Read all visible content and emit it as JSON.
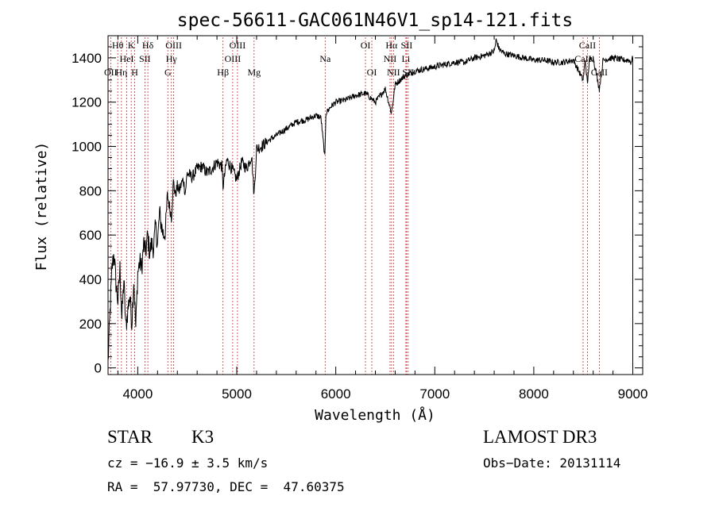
{
  "chart_data": {
    "type": "line",
    "title": "spec-56611-GAC061N46V1_sp14-121.fits",
    "xlabel": "Wavelength (Å)",
    "ylabel": "Flux (relative)",
    "xlim": [
      3700,
      9100
    ],
    "ylim": [
      -30,
      1500
    ],
    "x_ticks": [
      4000,
      5000,
      6000,
      7000,
      8000,
      9000
    ],
    "y_ticks": [
      0,
      200,
      400,
      600,
      800,
      1000,
      1200,
      1400
    ],
    "series": [
      {
        "name": "spectrum",
        "x": [
          3700,
          3720,
          3740,
          3760,
          3780,
          3800,
          3820,
          3840,
          3860,
          3880,
          3900,
          3920,
          3940,
          3960,
          3980,
          4000,
          4020,
          4040,
          4060,
          4080,
          4100,
          4120,
          4140,
          4160,
          4180,
          4200,
          4220,
          4240,
          4260,
          4280,
          4300,
          4320,
          4340,
          4360,
          4380,
          4400,
          4420,
          4440,
          4460,
          4480,
          4500,
          4550,
          4600,
          4650,
          4700,
          4750,
          4800,
          4850,
          4861,
          4900,
          4950,
          5000,
          5050,
          5100,
          5150,
          5175,
          5200,
          5250,
          5300,
          5400,
          5500,
          5600,
          5700,
          5800,
          5850,
          5890,
          5900,
          5950,
          6000,
          6100,
          6200,
          6300,
          6400,
          6500,
          6563,
          6600,
          6700,
          6800,
          6900,
          7000,
          7100,
          7200,
          7300,
          7400,
          7500,
          7600,
          7620,
          7650,
          7700,
          7800,
          7900,
          8000,
          8100,
          8200,
          8300,
          8400,
          8498,
          8520,
          8542,
          8560,
          8600,
          8662,
          8700,
          8800,
          8900,
          8960,
          8980,
          9000
        ],
        "y": [
          20,
          250,
          450,
          520,
          380,
          300,
          450,
          220,
          400,
          180,
          260,
          330,
          200,
          400,
          180,
          430,
          480,
          450,
          560,
          520,
          600,
          520,
          560,
          540,
          640,
          560,
          700,
          640,
          600,
          620,
          780,
          730,
          680,
          840,
          780,
          820,
          800,
          830,
          850,
          790,
          880,
          860,
          900,
          910,
          880,
          900,
          930,
          910,
          820,
          940,
          900,
          850,
          930,
          900,
          960,
          780,
          990,
          1000,
          1020,
          1050,
          1080,
          1110,
          1120,
          1140,
          1130,
          950,
          1150,
          1180,
          1200,
          1210,
          1230,
          1240,
          1200,
          1260,
          1150,
          1280,
          1320,
          1340,
          1350,
          1360,
          1370,
          1380,
          1380,
          1400,
          1410,
          1430,
          1480,
          1440,
          1420,
          1410,
          1400,
          1390,
          1390,
          1380,
          1380,
          1390,
          1300,
          1390,
          1280,
          1390,
          1400,
          1260,
          1390,
          1400,
          1390,
          1390,
          1380,
          1400
        ]
      }
    ],
    "line_markers": [
      {
        "label": "Hθ",
        "x": 3798,
        "row": 1
      },
      {
        "label": "OII",
        "x": 3727,
        "row": 3
      },
      {
        "label": "Hη",
        "x": 3835,
        "row": 3
      },
      {
        "label": "HeI",
        "x": 3889,
        "row": 2
      },
      {
        "label": "K",
        "x": 3934,
        "row": 1
      },
      {
        "label": "H",
        "x": 3969,
        "row": 3
      },
      {
        "label": "Hδ",
        "x": 4102,
        "row": 1
      },
      {
        "label": "SII",
        "x": 4072,
        "row": 2
      },
      {
        "label": "OIII",
        "x": 4363,
        "row": 1
      },
      {
        "label": "Hγ",
        "x": 4340,
        "row": 2
      },
      {
        "label": "G",
        "x": 4304,
        "row": 3
      },
      {
        "label": "Hβ",
        "x": 4861,
        "row": 3
      },
      {
        "label": "OIII",
        "x": 4959,
        "row": 2
      },
      {
        "label": "OIII",
        "x": 5007,
        "row": 1
      },
      {
        "label": "Mg",
        "x": 5175,
        "row": 3
      },
      {
        "label": "Na",
        "x": 5893,
        "row": 2
      },
      {
        "label": "OI",
        "x": 6300,
        "row": 1
      },
      {
        "label": "OI",
        "x": 6364,
        "row": 3
      },
      {
        "label": "NII",
        "x": 6548,
        "row": 2
      },
      {
        "label": "Hα",
        "x": 6563,
        "row": 1
      },
      {
        "label": "NII",
        "x": 6583,
        "row": 3
      },
      {
        "label": "Li",
        "x": 6708,
        "row": 2
      },
      {
        "label": "SII",
        "x": 6716,
        "row": 1
      },
      {
        "label": "SII",
        "x": 6731,
        "row": 3
      },
      {
        "label": "CaII",
        "x": 8498,
        "row": 2
      },
      {
        "label": "CaII",
        "x": 8542,
        "row": 1
      },
      {
        "label": "CaII",
        "x": 8662,
        "row": 3
      }
    ]
  },
  "info": {
    "class": "STAR",
    "subclass": "K3",
    "survey": "LAMOST DR3",
    "cz": "cz = −16.9 ± 3.5 km/s",
    "obs_date": "Obs−Date: 20131114",
    "coords": "RA =  57.97730, DEC =  47.60375"
  },
  "colors": {
    "marker": "#c83232",
    "line": "#000000"
  }
}
